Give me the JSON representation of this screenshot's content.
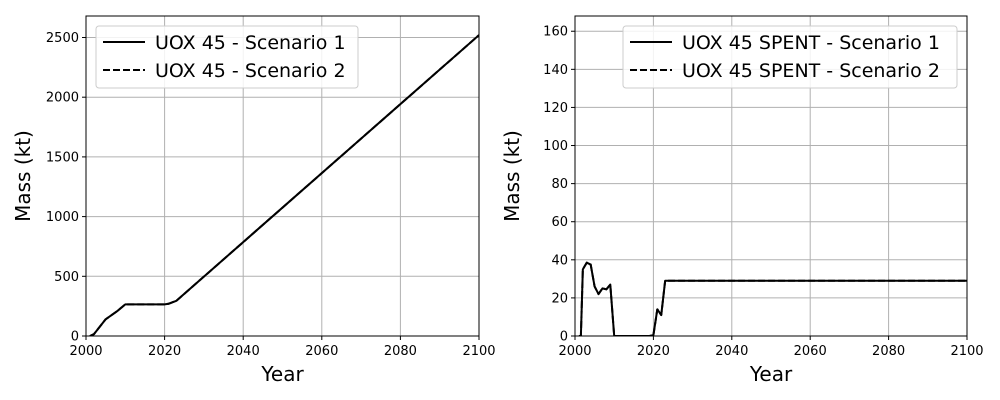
{
  "chart_data": [
    {
      "type": "line",
      "xlabel": "Year",
      "ylabel": "Mass (kt)",
      "xlim": [
        2000,
        2100
      ],
      "ylim": [
        0,
        2680
      ],
      "xticks": [
        2000,
        2020,
        2040,
        2060,
        2080,
        2100
      ],
      "yticks": [
        0,
        500,
        1000,
        1500,
        2000,
        2500
      ],
      "grid": true,
      "legend_position": "top-left",
      "series": [
        {
          "name": "UOX 45 - Scenario 1",
          "style": "solid",
          "color": "#000000",
          "x": [
            2001,
            2002,
            2005,
            2008,
            2010,
            2015,
            2020,
            2021,
            2023,
            2100
          ],
          "y": [
            0,
            15,
            140,
            210,
            265,
            265,
            265,
            270,
            295,
            2520
          ]
        },
        {
          "name": "UOX 45 - Scenario 2",
          "style": "dashed",
          "color": "#000000",
          "x": [
            2001,
            2002,
            2005,
            2008,
            2010,
            2015,
            2020,
            2021,
            2023,
            2100
          ],
          "y": [
            0,
            15,
            140,
            210,
            265,
            265,
            265,
            270,
            295,
            2520
          ]
        }
      ]
    },
    {
      "type": "line",
      "xlabel": "Year",
      "ylabel": "Mass (kt)",
      "xlim": [
        2000,
        2100
      ],
      "ylim": [
        0,
        168
      ],
      "xticks": [
        2000,
        2020,
        2040,
        2060,
        2080,
        2100
      ],
      "yticks": [
        0,
        20,
        40,
        60,
        80,
        100,
        120,
        140,
        160
      ],
      "grid": true,
      "legend_position": "top-right",
      "series": [
        {
          "name": "UOX 45 SPENT - Scenario 1",
          "style": "solid",
          "color": "#000000",
          "x": [
            2001,
            2001.5,
            2002,
            2003,
            2004,
            2005,
            2006,
            2007,
            2008,
            2009,
            2010,
            2015,
            2019,
            2020,
            2021,
            2022,
            2023,
            2100
          ],
          "y": [
            0,
            0,
            35,
            38.5,
            37.5,
            26,
            22,
            25,
            24.5,
            27,
            0,
            0,
            0,
            0.5,
            14,
            11,
            29,
            29
          ]
        },
        {
          "name": "UOX 45 SPENT - Scenario 2",
          "style": "dashed",
          "color": "#000000",
          "x": [
            2001,
            2001.5,
            2002,
            2003,
            2004,
            2005,
            2006,
            2007,
            2008,
            2009,
            2010,
            2015,
            2019,
            2020,
            2021,
            2022,
            2023,
            2100
          ],
          "y": [
            0,
            0,
            35,
            38.5,
            37.5,
            26,
            22,
            25,
            24.5,
            27,
            0,
            0,
            0,
            0.5,
            14,
            11,
            29,
            29
          ]
        }
      ]
    }
  ]
}
